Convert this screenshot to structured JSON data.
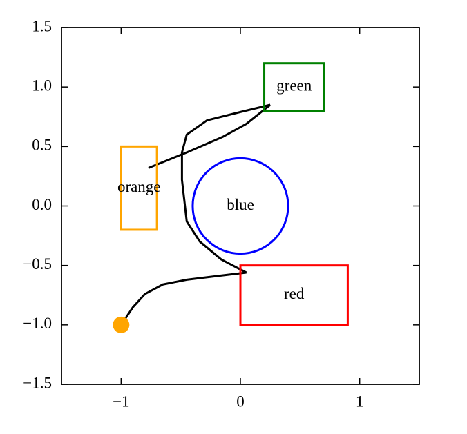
{
  "chart_data": {
    "type": "shapes",
    "xlim": [
      -1.5,
      1.5
    ],
    "ylim": [
      -1.5,
      1.5
    ],
    "xticks": [
      {
        "value": -1,
        "label": "−1"
      },
      0,
      1
    ],
    "yticks": [
      {
        "value": -1.5,
        "label": "−1.5"
      },
      {
        "value": -1,
        "label": "−1.0"
      },
      {
        "value": -0.5,
        "label": "−0.5"
      },
      {
        "value": 0,
        "label": "0.0"
      },
      0.5,
      {
        "value": 1,
        "label": "1.0"
      },
      1.5
    ],
    "shapes": [
      {
        "kind": "rect",
        "label": "green",
        "color": "#008000",
        "x": 0.2,
        "y": 0.8,
        "width": 0.5,
        "height": 0.4
      },
      {
        "kind": "rect",
        "label": "orange",
        "color": "#ffa500",
        "x": -1.0,
        "y": -0.2,
        "width": 0.3,
        "height": 0.7
      },
      {
        "kind": "circle",
        "label": "blue",
        "color": "#0000ff",
        "x": 0,
        "y": 0,
        "r": 0.4
      },
      {
        "kind": "rect",
        "label": "red",
        "color": "#ff0000",
        "x": 0,
        "y": -1.0,
        "width": 0.9,
        "height": 0.5
      }
    ],
    "points": [
      {
        "x": -1,
        "y": -1,
        "color": "#ffa500"
      }
    ],
    "lines": [
      {
        "color": "#000000",
        "x": [
          -0.77,
          -0.45,
          -0.15,
          0.05,
          0.25
        ],
        "y": [
          0.32,
          0.45,
          0.58,
          0.69,
          0.85
        ]
      },
      {
        "color": "#000000",
        "x": [
          0.25,
          0.0,
          -0.28,
          -0.45,
          -0.49,
          -0.49,
          -0.45,
          -0.34,
          -0.16,
          0.05
        ],
        "y": [
          0.85,
          0.79,
          0.72,
          0.6,
          0.45,
          0.22,
          -0.13,
          -0.3,
          -0.45,
          -0.56
        ]
      },
      {
        "color": "#000000",
        "x": [
          -1,
          -0.9,
          -0.8,
          -0.65,
          -0.45,
          -0.2,
          0.05
        ],
        "y": [
          -1,
          -0.85,
          -0.74,
          -0.66,
          -0.62,
          -0.59,
          -0.56
        ]
      }
    ]
  }
}
